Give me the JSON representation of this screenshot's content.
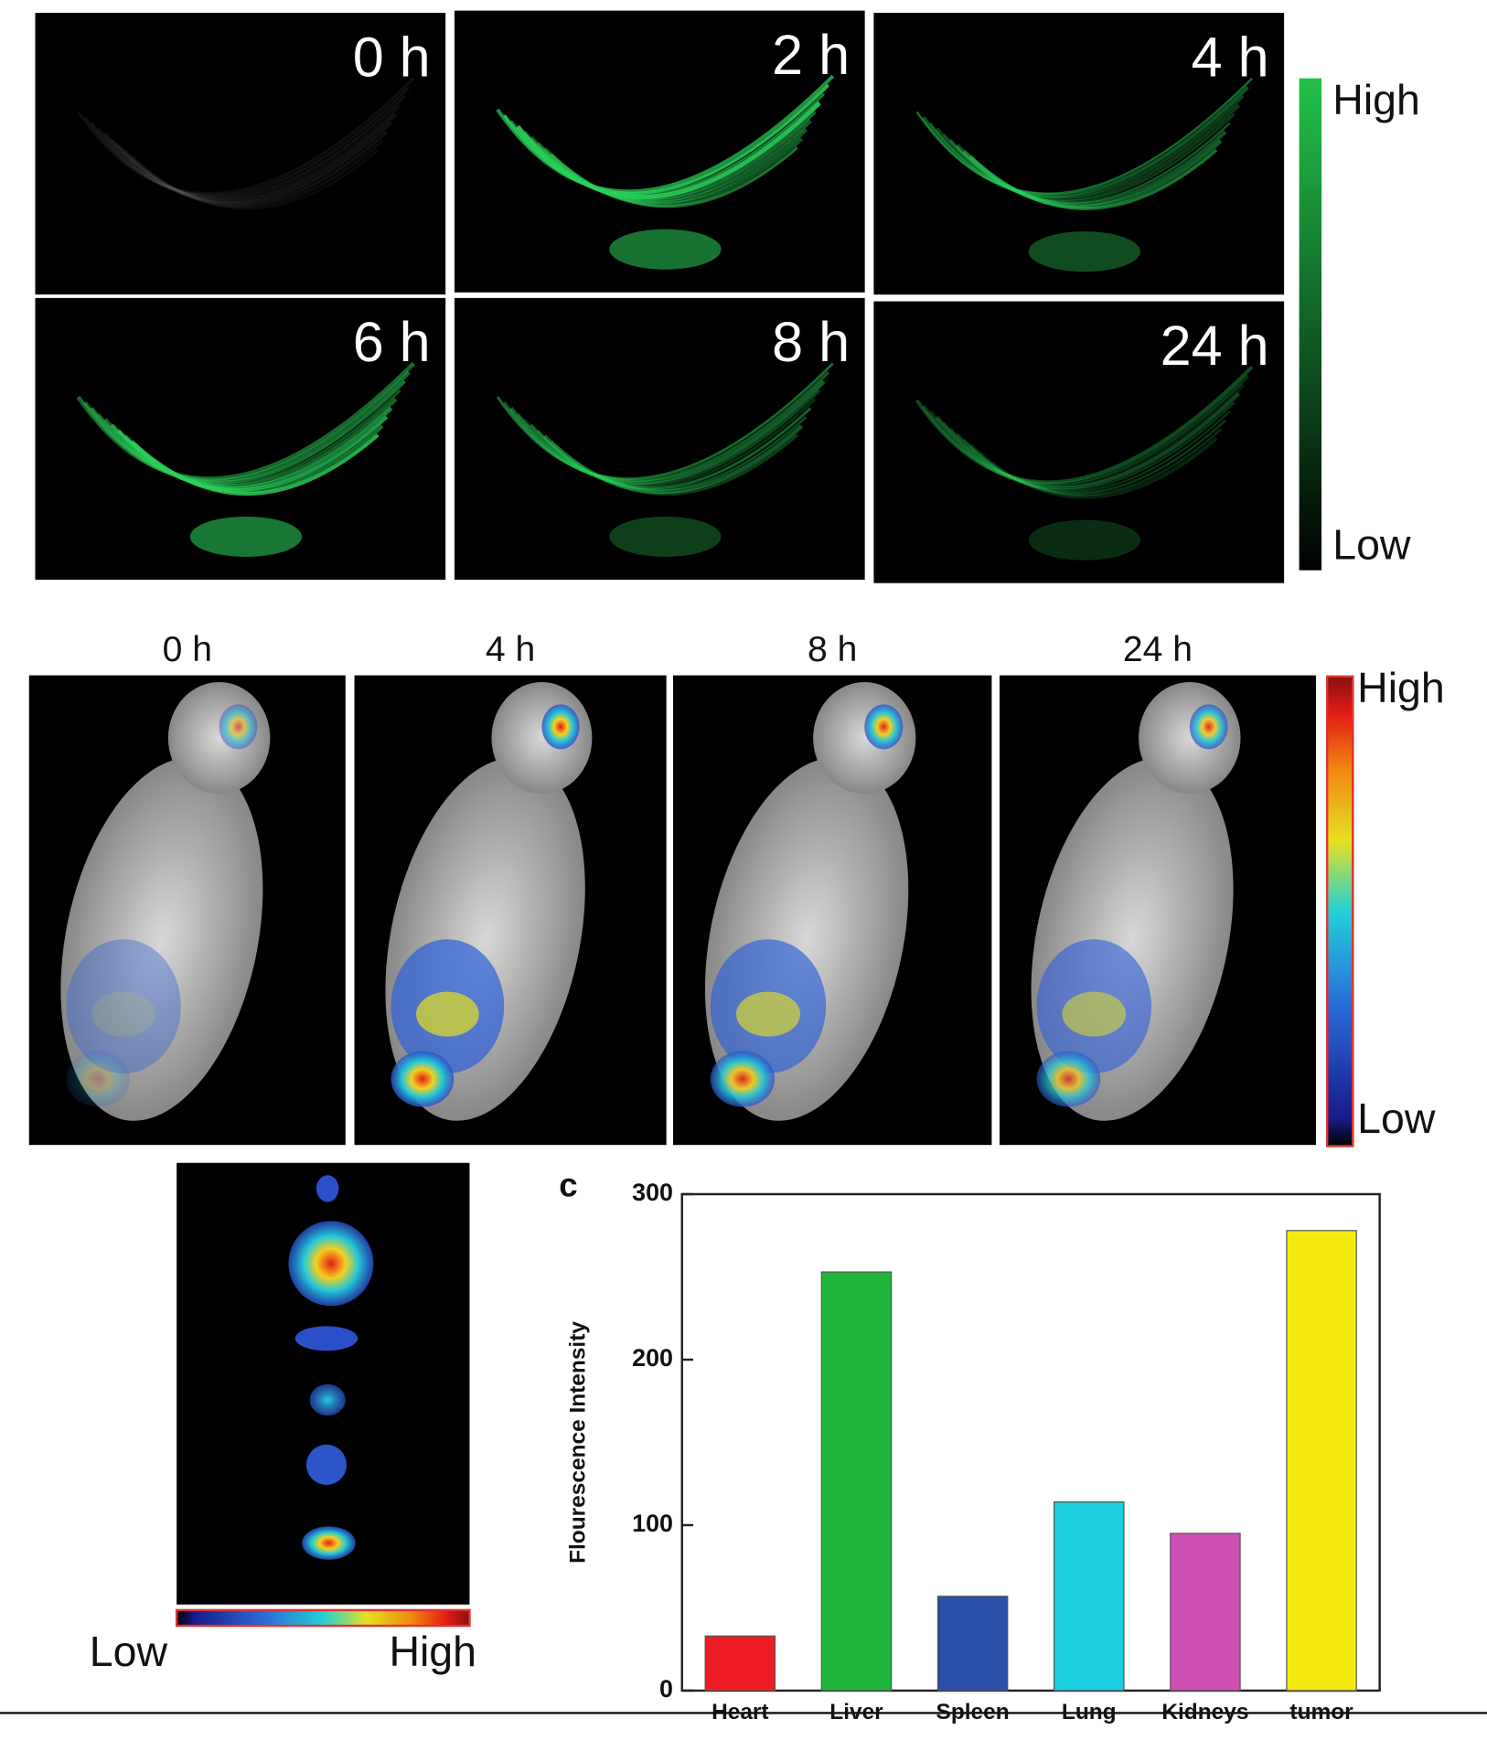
{
  "top_panel": {
    "time_labels": [
      "0 h",
      "2 h",
      "4 h",
      "6 h",
      "8 h",
      "24 h"
    ],
    "colorbar": {
      "high": "High",
      "low": "Low"
    }
  },
  "middle_panel": {
    "time_labels": [
      "0 h",
      "4 h",
      "8 h",
      "24 h"
    ],
    "colorbar": {
      "high": "High",
      "low": "Low"
    }
  },
  "organ_panel": {
    "colorbar": {
      "low": "Low",
      "high": "High"
    }
  },
  "chart_data": {
    "type": "bar",
    "panel_label": "c",
    "y_label": "Flourescence Intensity",
    "categories": [
      "Heart",
      "Liver",
      "Spleen",
      "Lung",
      "Kidneys",
      "tumor"
    ],
    "values": [
      33,
      253,
      57,
      114,
      95,
      278
    ],
    "colors": [
      "#ee1c24",
      "#1fb53a",
      "#2b4fa8",
      "#1ccfe0",
      "#d04fb5",
      "#f5ea10"
    ],
    "ylim": [
      0,
      300
    ],
    "yticks": [
      0,
      100,
      200,
      300
    ]
  }
}
